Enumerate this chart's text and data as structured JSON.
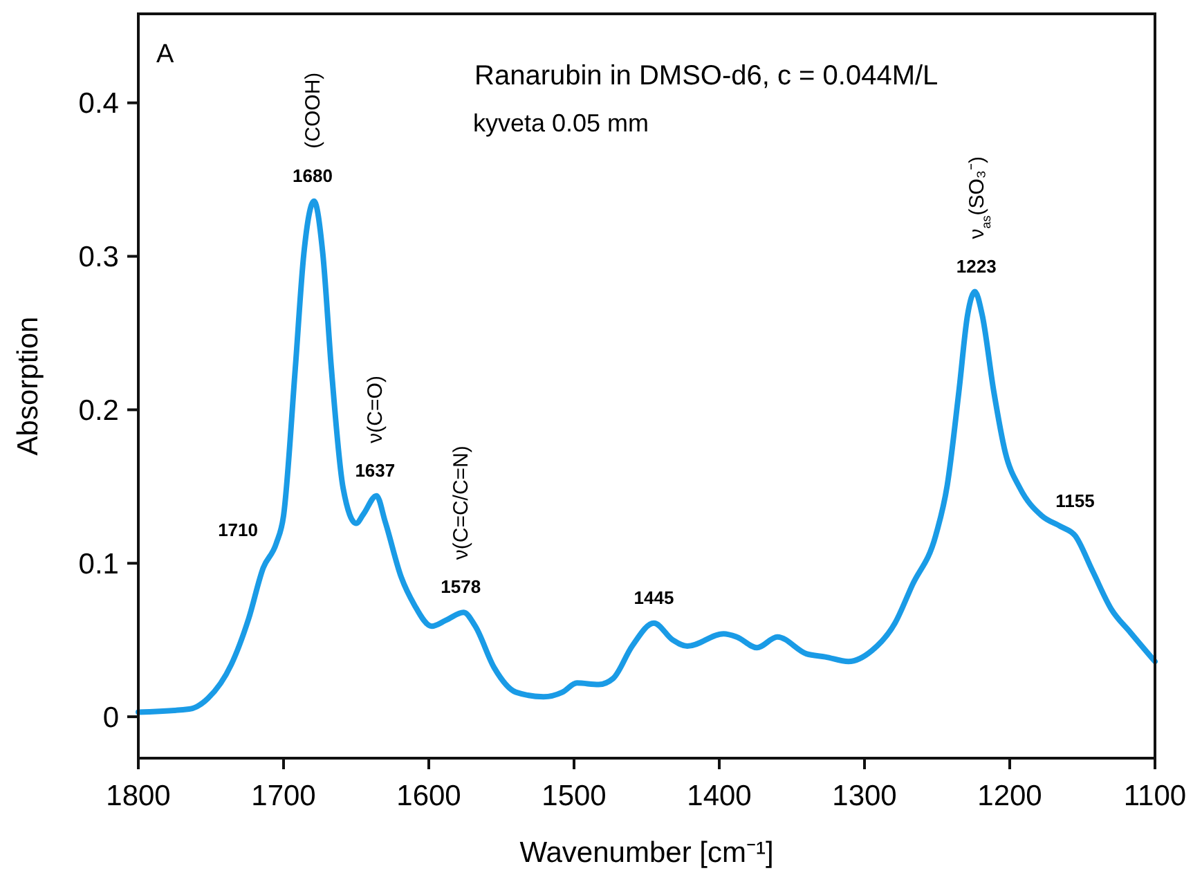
{
  "chart_data": {
    "type": "line",
    "title": "Ranarubin in DMSO-d6, c = 0.044M/L",
    "subtitle": "kyveta 0.05 mm",
    "xlabel": "Wavenumber [cm⁻¹]",
    "ylabel": "Absorption",
    "x": [
      1800,
      1765,
      1752,
      1736,
      1724,
      1714,
      1705,
      1700,
      1692,
      1686,
      1679,
      1673,
      1667,
      1659,
      1650,
      1645,
      1636,
      1630,
      1619,
      1610,
      1598,
      1588,
      1576,
      1568,
      1555,
      1540,
      1521,
      1508,
      1498,
      1483,
      1473,
      1460,
      1445,
      1432,
      1422,
      1397,
      1388,
      1374,
      1360,
      1340,
      1327,
      1311,
      1295,
      1279,
      1267,
      1251,
      1243,
      1235,
      1229,
      1224,
      1219,
      1211,
      1203,
      1193,
      1178,
      1165,
      1155,
      1143,
      1130,
      1117,
      1100
    ],
    "series": [
      {
        "color": "#1a9be6",
        "values": [
          0.003,
          0.005,
          0.012,
          0.034,
          0.064,
          0.097,
          0.113,
          0.131,
          0.226,
          0.302,
          0.336,
          0.302,
          0.226,
          0.149,
          0.126,
          0.132,
          0.144,
          0.127,
          0.091,
          0.073,
          0.059,
          0.063,
          0.068,
          0.059,
          0.032,
          0.016,
          0.013,
          0.016,
          0.022,
          0.021,
          0.025,
          0.046,
          0.061,
          0.05,
          0.046,
          0.054,
          0.052,
          0.045,
          0.052,
          0.041,
          0.039,
          0.036,
          0.043,
          0.061,
          0.086,
          0.118,
          0.151,
          0.212,
          0.262,
          0.277,
          0.262,
          0.212,
          0.172,
          0.149,
          0.131,
          0.124,
          0.118,
          0.095,
          0.07,
          0.055,
          0.036
        ]
      }
    ],
    "xlim": [
      1800,
      1100
    ],
    "xticks": [
      1800,
      1700,
      1600,
      1500,
      1400,
      1300,
      1200,
      1100
    ],
    "ylim": [
      -0.027,
      0.458
    ],
    "yticks": [
      0,
      0.1,
      0.2,
      0.3,
      0.4
    ],
    "marker": "none",
    "line_style": "solid",
    "annotations": [
      "A",
      {
        "text": "1710",
        "x": 1710,
        "y": 0.105
      },
      {
        "text": "1680",
        "x": 1680,
        "y": 0.336
      },
      {
        "text": "1637",
        "x": 1637,
        "y": 0.144
      },
      {
        "text": "1578",
        "x": 1578,
        "y": 0.068
      },
      {
        "text": "1445",
        "x": 1445,
        "y": 0.061
      },
      {
        "text": "1223",
        "x": 1223,
        "y": 0.277
      },
      {
        "text": "1155",
        "x": 1155,
        "y": 0.124
      },
      {
        "text": "(COOH)",
        "x": 1680,
        "y": 0.336
      },
      {
        "text": "ν(C=O)",
        "x": 1637,
        "y": 0.144
      },
      {
        "text": "ν(C=C/C=N)",
        "x": 1578,
        "y": 0.068
      },
      {
        "text": "ν$_{as}$(SO₃⁻)",
        "x": 1223,
        "y": 0.277
      }
    ]
  }
}
